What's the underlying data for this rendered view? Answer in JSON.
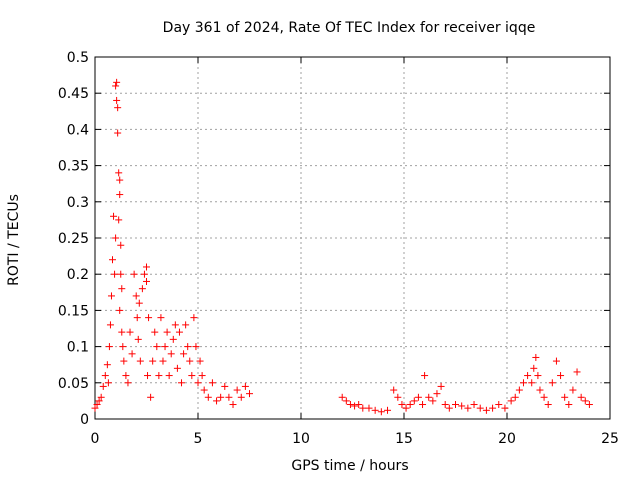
{
  "chart_data": {
    "type": "scatter",
    "title": "Day 361 of 2024, Rate Of TEC Index for receiver iqqe",
    "xlabel": "GPS time / hours",
    "ylabel": "ROTI / TECUs",
    "xlim": [
      0,
      25
    ],
    "ylim": [
      0,
      0.5
    ],
    "xticks": [
      0,
      5,
      10,
      15,
      20,
      25
    ],
    "yticks": [
      0,
      0.05,
      0.1,
      0.15,
      0.2,
      0.25,
      0.3,
      0.35,
      0.4,
      0.45,
      0.5
    ],
    "xtick_labels": [
      "0",
      "5",
      "10",
      "15",
      "20",
      "25"
    ],
    "ytick_labels": [
      "0",
      "0.05",
      "0.1",
      "0.15",
      "0.2",
      "0.25",
      "0.3",
      "0.35",
      "0.4",
      "0.45",
      "0.5"
    ],
    "grid": true,
    "marker": "+",
    "marker_color": "#ff0000",
    "series": [
      {
        "name": "ROTI",
        "x": [
          0.0,
          0.1,
          0.2,
          0.3,
          0.4,
          0.5,
          0.6,
          0.65,
          0.7,
          0.75,
          0.8,
          0.85,
          0.9,
          0.95,
          1.0,
          1.0,
          1.05,
          1.05,
          1.1,
          1.1,
          1.15,
          1.15,
          1.2,
          1.2,
          1.2,
          1.25,
          1.25,
          1.3,
          1.3,
          1.35,
          1.4,
          1.5,
          1.6,
          1.7,
          1.8,
          1.9,
          2.0,
          2.05,
          2.1,
          2.15,
          2.2,
          2.3,
          2.4,
          2.5,
          2.5,
          2.55,
          2.6,
          2.7,
          2.8,
          2.9,
          3.0,
          3.1,
          3.2,
          3.3,
          3.4,
          3.5,
          3.6,
          3.7,
          3.8,
          3.9,
          4.0,
          4.1,
          4.2,
          4.3,
          4.4,
          4.5,
          4.6,
          4.7,
          4.8,
          4.9,
          5.0,
          5.1,
          5.2,
          5.3,
          5.5,
          5.7,
          5.9,
          6.1,
          6.3,
          6.5,
          6.7,
          6.9,
          7.1,
          7.3,
          7.5,
          12.0,
          12.2,
          12.4,
          12.6,
          12.8,
          13.0,
          13.3,
          13.6,
          13.9,
          14.2,
          14.5,
          14.7,
          14.9,
          15.1,
          15.3,
          15.5,
          15.7,
          15.9,
          16.0,
          16.2,
          16.4,
          16.6,
          16.8,
          17.0,
          17.2,
          17.5,
          17.8,
          18.1,
          18.4,
          18.7,
          19.0,
          19.3,
          19.6,
          19.9,
          20.2,
          20.4,
          20.6,
          20.8,
          21.0,
          21.2,
          21.3,
          21.4,
          21.5,
          21.6,
          21.8,
          22.0,
          22.2,
          22.4,
          22.6,
          22.8,
          23.0,
          23.2,
          23.4,
          23.6,
          23.8,
          24.0
        ],
        "y": [
          0.015,
          0.02,
          0.025,
          0.03,
          0.045,
          0.06,
          0.075,
          0.05,
          0.1,
          0.13,
          0.17,
          0.22,
          0.28,
          0.2,
          0.25,
          0.46,
          0.465,
          0.44,
          0.43,
          0.395,
          0.34,
          0.275,
          0.31,
          0.33,
          0.15,
          0.24,
          0.2,
          0.18,
          0.12,
          0.1,
          0.08,
          0.06,
          0.05,
          0.12,
          0.09,
          0.2,
          0.17,
          0.14,
          0.11,
          0.16,
          0.08,
          0.18,
          0.2,
          0.21,
          0.19,
          0.06,
          0.14,
          0.03,
          0.08,
          0.12,
          0.1,
          0.06,
          0.14,
          0.08,
          0.1,
          0.12,
          0.06,
          0.09,
          0.11,
          0.13,
          0.07,
          0.12,
          0.05,
          0.09,
          0.13,
          0.1,
          0.08,
          0.06,
          0.14,
          0.1,
          0.05,
          0.08,
          0.06,
          0.04,
          0.03,
          0.05,
          0.025,
          0.03,
          0.045,
          0.03,
          0.02,
          0.04,
          0.03,
          0.045,
          0.035,
          0.03,
          0.025,
          0.02,
          0.018,
          0.02,
          0.015,
          0.015,
          0.012,
          0.01,
          0.012,
          0.04,
          0.03,
          0.02,
          0.015,
          0.02,
          0.025,
          0.03,
          0.02,
          0.06,
          0.03,
          0.025,
          0.035,
          0.045,
          0.02,
          0.015,
          0.02,
          0.018,
          0.015,
          0.02,
          0.015,
          0.012,
          0.015,
          0.02,
          0.015,
          0.025,
          0.03,
          0.04,
          0.05,
          0.06,
          0.05,
          0.07,
          0.085,
          0.06,
          0.04,
          0.03,
          0.02,
          0.05,
          0.08,
          0.06,
          0.03,
          0.02,
          0.04,
          0.065,
          0.03,
          0.025,
          0.02
        ]
      }
    ]
  }
}
